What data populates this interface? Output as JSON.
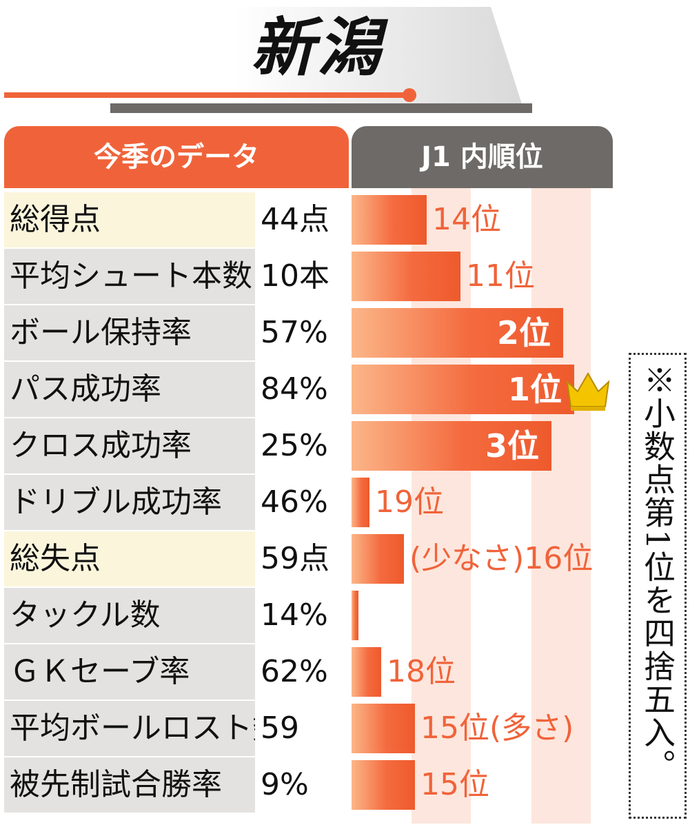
{
  "title": "新潟",
  "header": {
    "data_label": "今季のデータ",
    "rank_label": "J1 内順位"
  },
  "note": "※小数点第1位を四捨五入。",
  "colors": {
    "accent": "#f0633a",
    "dark_header": "#6e6a67",
    "highlight_row": "#fbf5dc",
    "label_bg": "#e3e2e1",
    "stripe": "#fde6dd",
    "crown": "#f4c400"
  },
  "icons": {
    "best_rank": "crown-icon"
  },
  "chart_data": {
    "type": "bar",
    "scale": "rank among J1 clubs (1 = best)",
    "rows": [
      {
        "label": "総得点",
        "value": "44点",
        "rank": 14,
        "rank_text": "14位",
        "highlight": true
      },
      {
        "label": "平均シュート本数",
        "value": "10本",
        "rank": 11,
        "rank_text": "11位"
      },
      {
        "label": "ボール保持率",
        "value": "57%",
        "rank": 2,
        "rank_text": "2位"
      },
      {
        "label": "パス成功率",
        "value": "84%",
        "rank": 1,
        "rank_text": "1位",
        "crown": true
      },
      {
        "label": "クロス成功率",
        "value": "25%",
        "rank": 3,
        "rank_text": "3位"
      },
      {
        "label": "ドリブル成功率",
        "value": "46%",
        "rank": 19,
        "rank_text": "19位"
      },
      {
        "label": "総失点",
        "value": "59点",
        "rank": 16,
        "rank_text": "(少なさ)16位",
        "highlight": true
      },
      {
        "label": "タックル数",
        "value": "14%",
        "rank": 20,
        "rank_text": ""
      },
      {
        "label": "ＧＫセーブ率",
        "value": "62%",
        "rank": 18,
        "rank_text": "18位"
      },
      {
        "label": "平均ボールロスト数",
        "value": "59",
        "rank": 15,
        "rank_text": "15位(多さ)"
      },
      {
        "label": "被先制試合勝率",
        "value": "9%",
        "rank": 15,
        "rank_text": "15位"
      }
    ]
  }
}
